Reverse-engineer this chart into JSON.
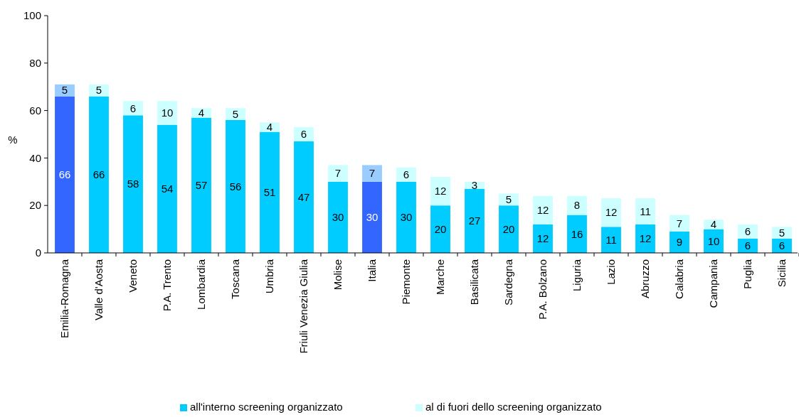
{
  "chart_data": {
    "type": "bar",
    "stacked": true,
    "ylabel": "%",
    "categories": [
      "Emilia-Romagna",
      "Valle d'Aosta",
      "Veneto",
      "P.A. Trento",
      "Lombardia",
      "Toscana",
      "Umbria",
      "Friuli Venezia Giulia",
      "Molise",
      "Italia",
      "Piemonte",
      "Marche",
      "Basilicata",
      "Sardegna",
      "P.A. Bolzano",
      "Liguria",
      "Lazio",
      "Abruzzo",
      "Calabria",
      "Campania",
      "Puglia",
      "Sicilia"
    ],
    "series": [
      {
        "name": "all'interno screening organizzato",
        "color": "#00ccff",
        "colors": [
          "#3366ff",
          "#00ccff",
          "#00ccff",
          "#00ccff",
          "#00ccff",
          "#00ccff",
          "#00ccff",
          "#00ccff",
          "#00ccff",
          "#3366ff",
          "#00ccff",
          "#00ccff",
          "#00ccff",
          "#00ccff",
          "#00ccff",
          "#00ccff",
          "#00ccff",
          "#00ccff",
          "#00ccff",
          "#00ccff",
          "#00ccff",
          "#00ccff"
        ],
        "values": [
          66,
          66,
          58,
          54,
          57,
          56,
          51,
          47,
          30,
          30,
          30,
          20,
          27,
          20,
          12,
          16,
          11,
          12,
          9,
          10,
          6,
          6
        ]
      },
      {
        "name": "al di fuori dello screening organizzato",
        "color": "#ccffff",
        "colors": [
          "#99ccff",
          "#ccffff",
          "#ccffff",
          "#ccffff",
          "#ccffff",
          "#ccffff",
          "#ccffff",
          "#ccffff",
          "#ccffff",
          "#99ccff",
          "#ccffff",
          "#ccffff",
          "#ccffff",
          "#ccffff",
          "#ccffff",
          "#ccffff",
          "#ccffff",
          "#ccffff",
          "#ccffff",
          "#ccffff",
          "#ccffff",
          "#ccffff"
        ],
        "values": [
          5,
          5,
          6,
          10,
          4,
          5,
          4,
          6,
          7,
          7,
          6,
          12,
          3,
          5,
          12,
          8,
          12,
          11,
          7,
          4,
          6,
          5
        ]
      }
    ],
    "ylim": [
      0,
      100
    ],
    "yticks": [
      0,
      20,
      40,
      60,
      80,
      100
    ],
    "data_labels": true,
    "legend": "bottom"
  }
}
